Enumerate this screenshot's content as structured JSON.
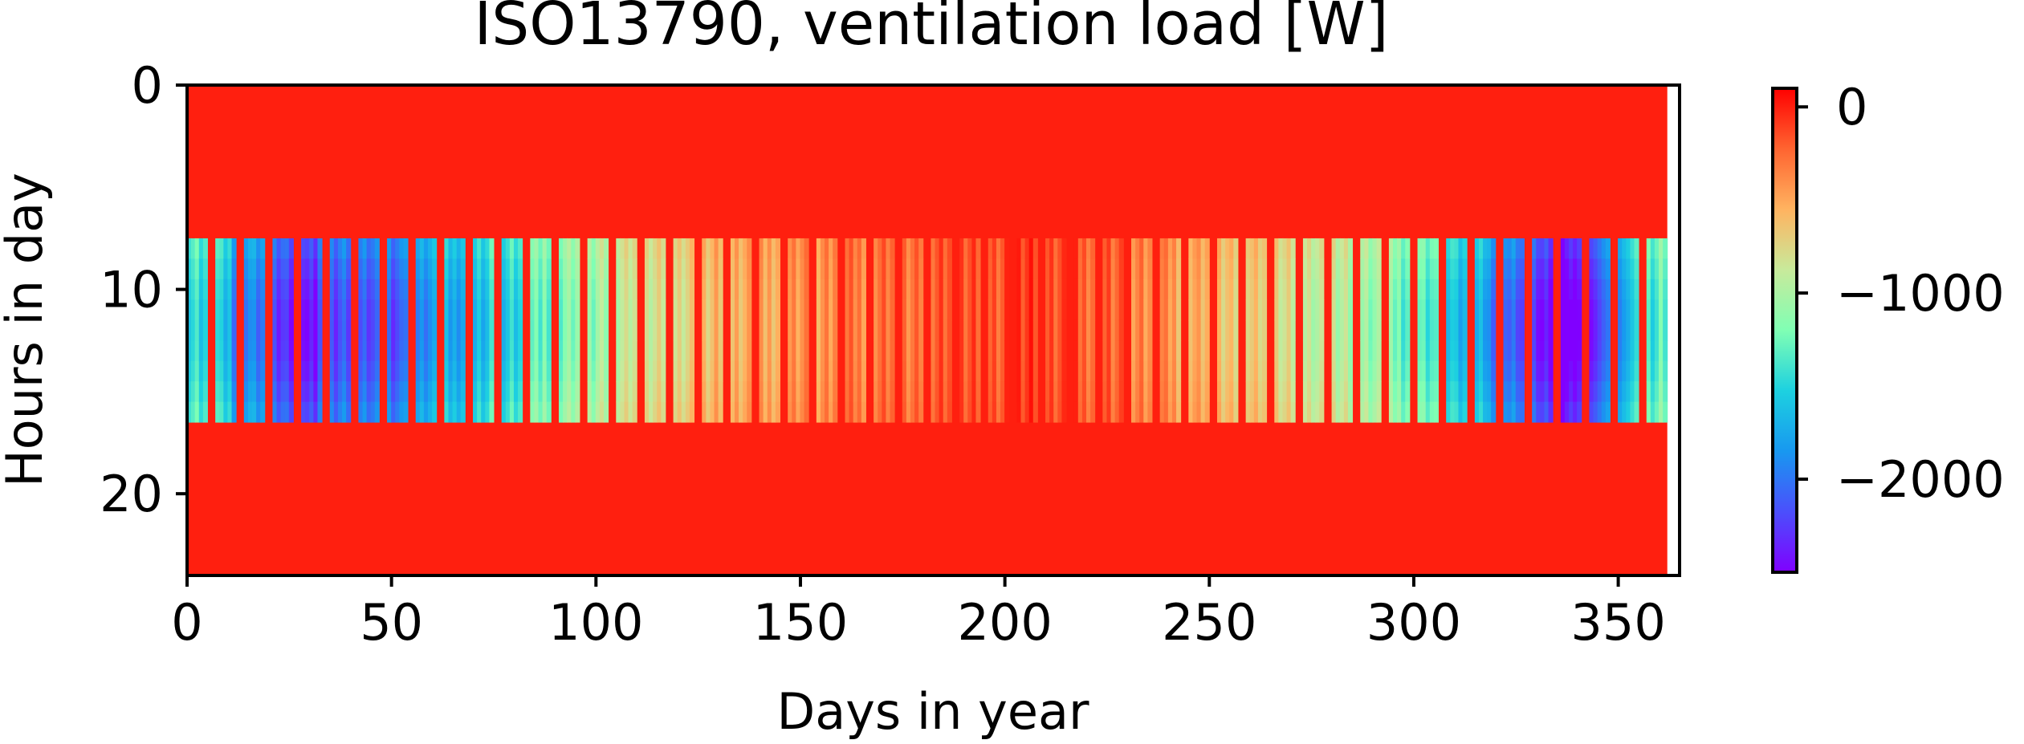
{
  "chart_data": {
    "type": "heatmap",
    "title": "ISO13790, ventilation load [W]",
    "xlabel": "Days in year",
    "ylabel": "Hours in day",
    "xlim": [
      0,
      365
    ],
    "ylim": [
      24,
      0
    ],
    "x_ticks": [
      0,
      50,
      100,
      150,
      200,
      250,
      300,
      350
    ],
    "y_ticks": [
      0,
      10,
      20
    ],
    "x_tick_labels": [
      "0",
      "50",
      "100",
      "150",
      "200",
      "250",
      "300",
      "350"
    ],
    "y_tick_labels": [
      "0",
      "10",
      "20"
    ],
    "active_hours": [
      8,
      16
    ],
    "last_day": 362,
    "weekday_pattern": "5 working days (load) followed by 2 weekend days (0 W)",
    "first_weekend_day": 5,
    "off_hours_value": 0,
    "weekday_daily_load": [
      -1300,
      -1350,
      -1500,
      -1700,
      -1800,
      -2000,
      -2100,
      -2250,
      -2000,
      -1950,
      -1900,
      -1950,
      -2000,
      -1750,
      -1700,
      -1600,
      -1550,
      -1500,
      -1400,
      -1350,
      -1200,
      -1100,
      -1050,
      -1000,
      -900,
      -850,
      -800,
      -750,
      -700,
      -650,
      -600,
      -550,
      -500,
      -500,
      -450,
      -400,
      -400,
      -350,
      -300,
      -300,
      -250,
      -250,
      -250,
      -200,
      -200,
      -150,
      -150,
      -150,
      -100,
      -100,
      -150,
      -150,
      -200,
      -200,
      -250,
      -300,
      -350,
      -400,
      -450,
      -500,
      -550,
      -600,
      -650,
      -700,
      -750,
      -800,
      -850,
      -900,
      -950,
      -1000,
      -1100,
      -1150,
      -1250,
      -1350,
      -1500,
      -1600,
      -1750,
      -1900,
      -2050,
      -2200,
      -2400,
      -2300,
      -2000,
      -1700,
      -1400,
      -1300,
      -1200
    ],
    "colorbar": {
      "colormap": "rainbow",
      "min": -2500,
      "max": 100,
      "ticks": [
        0,
        -1000,
        -2000
      ],
      "tick_labels": [
        "0",
        "−1000",
        "−2000"
      ]
    }
  }
}
